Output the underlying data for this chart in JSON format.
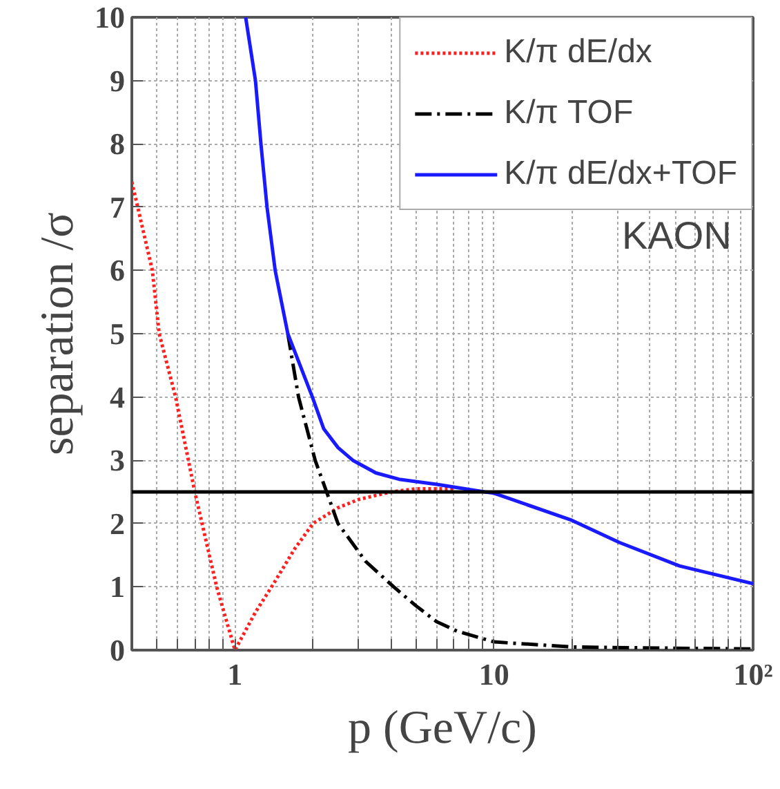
{
  "chart_data": {
    "type": "line",
    "xlabel": "p (GeV/c)",
    "ylabel": "separation /σ",
    "log": "x",
    "grid": true,
    "legend": "top right",
    "xlim": [
      0.4,
      100
    ],
    "ylim": [
      0,
      10
    ],
    "xticks": [
      {
        "value": 0.4,
        "label": null
      },
      {
        "value": 0.5,
        "label": null
      },
      {
        "value": 0.6,
        "label": null
      },
      {
        "value": 0.7,
        "label": null
      },
      {
        "value": 0.8,
        "label": null
      },
      {
        "value": 0.9,
        "label": null
      },
      1,
      {
        "value": 2,
        "label": null
      },
      {
        "value": 3,
        "label": null
      },
      {
        "value": 4,
        "label": null
      },
      {
        "value": 5,
        "label": null
      },
      {
        "value": 6,
        "label": null
      },
      {
        "value": 7,
        "label": null
      },
      {
        "value": 8,
        "label": null
      },
      {
        "value": 9,
        "label": null
      },
      10,
      {
        "value": 20,
        "label": null
      },
      {
        "value": 30,
        "label": null
      },
      {
        "value": 40,
        "label": null
      },
      {
        "value": 50,
        "label": null
      },
      {
        "value": 60,
        "label": null
      },
      {
        "value": 70,
        "label": null
      },
      {
        "value": 80,
        "label": null
      },
      {
        "value": 90,
        "label": null
      },
      {
        "value": 100,
        "label": "10²"
      }
    ],
    "yticks": [
      0,
      1,
      2,
      3,
      4,
      5,
      6,
      7,
      8,
      9,
      10
    ],
    "series": [
      {
        "name": "K/π dE/dx",
        "color": "#ff2020",
        "line_style": "dotted",
        "x": [
          0.4,
          0.48,
          0.51,
          0.59,
          0.7,
          0.85,
          1.0,
          1.2,
          1.41,
          1.7,
          2.0,
          2.5,
          3.0,
          4.0,
          5.0,
          7.0
        ],
        "values": [
          7.4,
          6.0,
          5.0,
          4.0,
          2.5,
          1.0,
          0.0,
          0.6,
          1.05,
          1.6,
          2.0,
          2.25,
          2.38,
          2.5,
          2.55,
          2.55
        ]
      },
      {
        "name": "K/π TOF",
        "color": "#000000",
        "line_style": "dashdot",
        "x": [
          1.6,
          1.76,
          2.04,
          2.5,
          3.2,
          4.1,
          5.0,
          6.0,
          7.2,
          10,
          20,
          50,
          100
        ],
        "values": [
          5,
          4,
          3,
          2,
          1.4,
          1.0,
          0.7,
          0.45,
          0.3,
          0.13,
          0.05,
          0.03,
          0.02
        ]
      },
      {
        "name": "K/π dE/dx+TOF",
        "color": "#1a1aff",
        "line_style": "solid",
        "x": [
          1.1,
          1.2,
          1.26,
          1.33,
          1.43,
          1.6,
          1.99,
          2.2,
          2.5,
          2.85,
          3.5,
          4.3,
          6.0,
          9.2,
          10,
          20,
          30.5,
          52,
          100
        ],
        "values": [
          10,
          9,
          8,
          7,
          6,
          5,
          4,
          3.5,
          3.2,
          3.0,
          2.8,
          2.7,
          2.62,
          2.5,
          2.48,
          2.05,
          1.7,
          1.33,
          1.05
        ]
      }
    ],
    "ref_lines": [
      {
        "axis": "y",
        "value": 2.5,
        "color": "#000000",
        "line_style": "solid"
      }
    ],
    "annotations": [
      "KAON"
    ]
  }
}
